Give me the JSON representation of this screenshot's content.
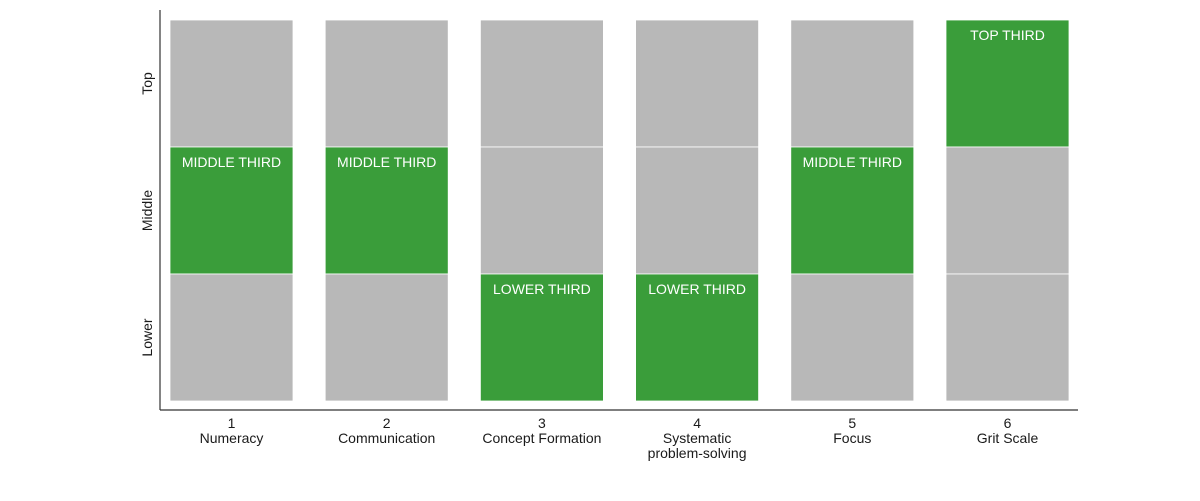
{
  "chart_data": {
    "type": "bar",
    "y_categories": [
      "Lower",
      "Middle",
      "Top"
    ],
    "categories": [
      {
        "number": "1",
        "name": [
          "Numeracy"
        ],
        "band": "Middle",
        "label": "MIDDLE THIRD"
      },
      {
        "number": "2",
        "name": [
          "Communication"
        ],
        "band": "Middle",
        "label": "MIDDLE THIRD"
      },
      {
        "number": "3",
        "name": [
          "Concept Formation"
        ],
        "band": "Lower",
        "label": "LOWER THIRD"
      },
      {
        "number": "4",
        "name": [
          "Systematic",
          "problem-solving"
        ],
        "band": "Lower",
        "label": "LOWER THIRD"
      },
      {
        "number": "5",
        "name": [
          "Focus"
        ],
        "band": "Middle",
        "label": "MIDDLE THIRD"
      },
      {
        "number": "6",
        "name": [
          "Grit Scale"
        ],
        "band": "Top",
        "label": "TOP THIRD"
      }
    ],
    "colors": {
      "highlight": "#3a9d3a",
      "background": "#b8b8b8",
      "axis": "#333333"
    },
    "title": "",
    "xlabel": "",
    "ylabel": "",
    "grid": false,
    "legend": "none"
  }
}
